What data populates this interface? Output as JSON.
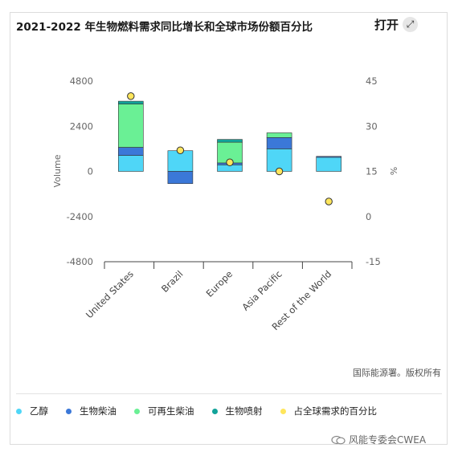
{
  "header": {
    "title": "2021-2022 年生物燃料需求同比增长和全球市场份额百分比",
    "open_label": "打开",
    "open_icon": "expand-icon"
  },
  "footer": {
    "source": "国际能源署。版权所有",
    "watermark": "风能专委会CWEA"
  },
  "legend": [
    {
      "label": "乙醇",
      "color": "#4fd6f7"
    },
    {
      "label": "生物柴油",
      "color": "#3b78d8"
    },
    {
      "label": "可再生柴油",
      "color": "#6af095"
    },
    {
      "label": "生物喷射",
      "color": "#12a39a"
    },
    {
      "label": "占全球需求的百分比",
      "color": "#ffe65c"
    }
  ],
  "chart_data": {
    "type": "bar",
    "stacked": true,
    "categories": [
      "United States",
      "Brazil",
      "Europe",
      "Asia Pacific",
      "Rest of the World"
    ],
    "series": [
      {
        "name": "乙醇",
        "color": "#4fd6f7",
        "values": [
          850,
          1100,
          350,
          1200,
          750
        ]
      },
      {
        "name": "生物柴油",
        "color": "#3b78d8",
        "values": [
          430,
          -650,
          100,
          600,
          50
        ]
      },
      {
        "name": "可再生柴油",
        "color": "#6af095",
        "values": [
          2300,
          0,
          1100,
          250,
          0
        ]
      },
      {
        "name": "生物喷射",
        "color": "#12a39a",
        "values": [
          150,
          0,
          150,
          0,
          0
        ]
      }
    ],
    "secondary_series": {
      "name": "占全球需求的百分比",
      "color": "#ffe65c",
      "type": "scatter",
      "values": [
        40,
        22,
        18,
        15,
        5
      ]
    },
    "ylabel": "Volume",
    "ylabel_right": "%",
    "ylim": [
      -4800,
      4800
    ],
    "yticks": [
      "4800",
      "2400",
      "0",
      "-2400",
      "-4800"
    ],
    "ylim_right": [
      -15,
      45
    ],
    "yticks_right": [
      "45",
      "30",
      "15",
      "0",
      "-15"
    ],
    "grid": false
  }
}
